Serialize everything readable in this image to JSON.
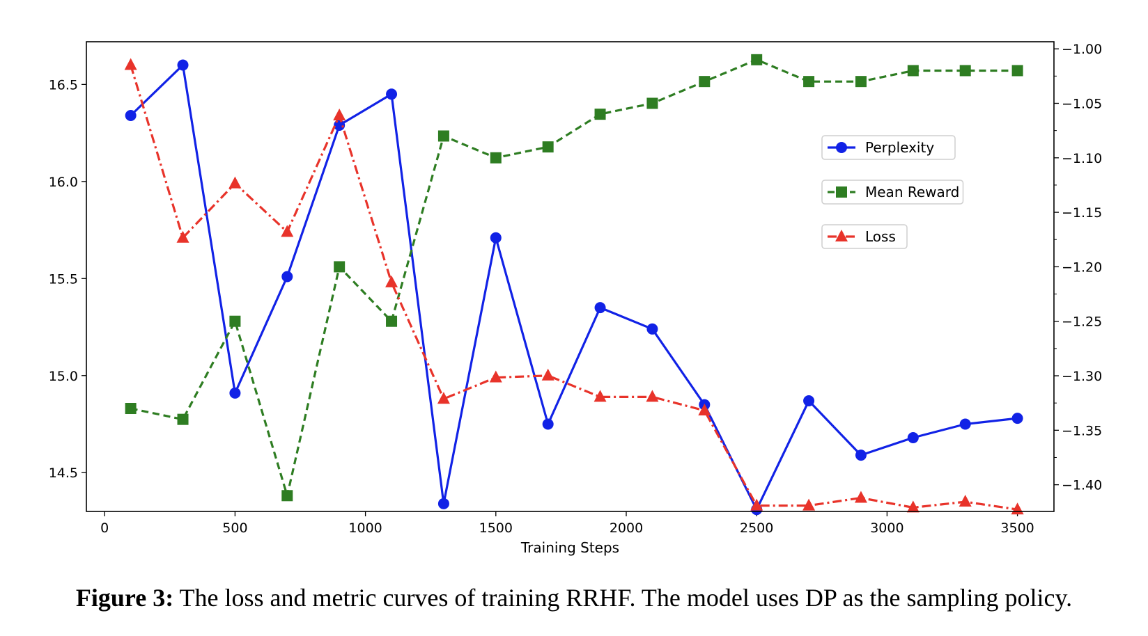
{
  "chart_data": {
    "type": "line",
    "xlabel": "Training Steps",
    "x_ticks": [
      0,
      500,
      1000,
      1500,
      2000,
      2500,
      3000,
      3500
    ],
    "xlim": [
      -70,
      3640
    ],
    "left_axis": {
      "ylim": [
        14.3,
        16.72
      ],
      "ticks": [
        14.5,
        15.0,
        15.5,
        16.0,
        16.5
      ],
      "tick_labels": [
        "14.5",
        "15.0",
        "15.5",
        "16.0",
        "16.5"
      ]
    },
    "right_axis": {
      "ylim": [
        -1.4245,
        -0.9935
      ],
      "ticks": [
        -1.0,
        -1.05,
        -1.1,
        -1.15,
        -1.2,
        -1.25,
        -1.3,
        -1.35,
        -1.4
      ],
      "tick_labels": [
        "−1.00",
        "−1.05",
        "−1.10",
        "−1.15",
        "−1.20",
        "−1.25",
        "−1.30",
        "−1.35",
        "−1.40"
      ]
    },
    "x": [
      100,
      300,
      500,
      700,
      900,
      1100,
      1300,
      1500,
      1700,
      1900,
      2100,
      2300,
      2500,
      2700,
      2900,
      3100,
      3300,
      3500
    ],
    "series": [
      {
        "name": "Perplexity",
        "axis": "left",
        "color": "#1122e6",
        "marker": "circle",
        "linestyle": "solid",
        "values": [
          16.34,
          16.6,
          14.91,
          15.51,
          16.29,
          16.45,
          14.34,
          15.71,
          14.75,
          15.35,
          15.24,
          14.85,
          14.31,
          14.87,
          14.59,
          14.68,
          14.75,
          14.78
        ]
      },
      {
        "name": "Mean Reward",
        "axis": "right",
        "color": "#2e7d22",
        "marker": "square",
        "linestyle": "dashed",
        "values": [
          -1.33,
          -1.34,
          -1.25,
          -1.41,
          -1.2,
          -1.25,
          -1.08,
          -1.1,
          -1.09,
          -1.06,
          -1.05,
          -1.03,
          -1.01,
          -1.03,
          -1.03,
          -1.02,
          -1.02,
          -1.02
        ]
      },
      {
        "name": "Loss",
        "axis": "left",
        "color": "#e8332a",
        "marker": "triangle",
        "linestyle": "dashdot",
        "values": [
          16.6,
          15.71,
          15.99,
          15.74,
          16.34,
          15.48,
          14.88,
          14.99,
          15.0,
          14.89,
          14.89,
          14.82,
          14.33,
          14.33,
          14.37,
          14.32,
          14.35,
          14.31
        ]
      }
    ],
    "legend": [
      "Perplexity",
      "Mean Reward",
      "Loss"
    ],
    "legend_position": "right"
  },
  "caption": {
    "label": "Figure 3:",
    "text": " The loss and metric curves of training RRHF. The model uses DP as the sampling policy."
  }
}
